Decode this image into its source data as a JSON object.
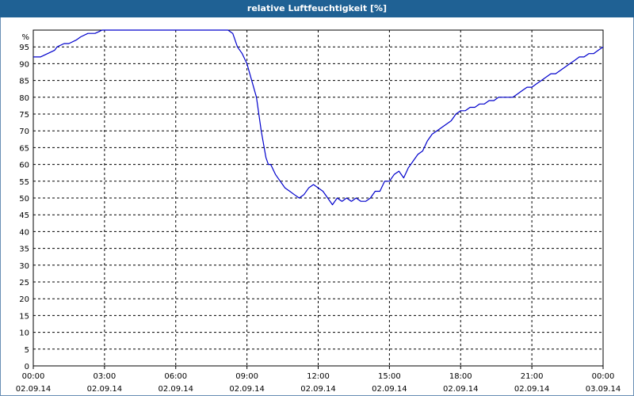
{
  "header": {
    "title": "relative Luftfeuchtigkeit [%]"
  },
  "chart_data": {
    "type": "line",
    "title": "relative Luftfeuchtigkeit [%]",
    "ylabel": "%",
    "xlabel": "",
    "ylim": [
      0,
      100
    ],
    "yticks": [
      0,
      5,
      10,
      15,
      20,
      25,
      30,
      35,
      40,
      45,
      50,
      55,
      60,
      65,
      70,
      75,
      80,
      85,
      90,
      95
    ],
    "xlim_hours": [
      0,
      24
    ],
    "xticks": [
      {
        "hours": 0,
        "time": "00:00",
        "date": "02.09.14"
      },
      {
        "hours": 3,
        "time": "03:00",
        "date": "02.09.14"
      },
      {
        "hours": 6,
        "time": "06:00",
        "date": "02.09.14"
      },
      {
        "hours": 9,
        "time": "09:00",
        "date": "02.09.14"
      },
      {
        "hours": 12,
        "time": "12:00",
        "date": "02.09.14"
      },
      {
        "hours": 15,
        "time": "15:00",
        "date": "02.09.14"
      },
      {
        "hours": 18,
        "time": "18:00",
        "date": "02.09.14"
      },
      {
        "hours": 21,
        "time": "21:00",
        "date": "02.09.14"
      },
      {
        "hours": 24,
        "time": "00:00",
        "date": "03.09.14"
      }
    ],
    "grid": true,
    "line_color": "#0000cc",
    "series": [
      {
        "x": [
          0,
          0.3,
          0.6,
          0.9,
          1.0,
          1.3,
          1.5,
          1.8,
          2.0,
          2.3,
          2.6,
          2.9,
          3.3,
          4.0,
          4.8,
          5.5,
          6.5,
          7.5,
          8.2,
          8.4,
          8.6,
          8.8,
          9.0,
          9.2,
          9.4,
          9.6,
          9.7,
          9.8,
          9.9,
          10.0,
          10.2,
          10.4,
          10.5,
          10.6,
          10.8,
          11.0,
          11.2,
          11.4,
          11.6,
          11.8,
          12.0,
          12.2,
          12.4,
          12.6,
          12.8,
          13.0,
          13.2,
          13.4,
          13.6,
          13.8,
          14.0,
          14.2,
          14.4,
          14.6,
          14.8,
          15.0,
          15.2,
          15.4,
          15.6,
          15.8,
          16.0,
          16.2,
          16.4,
          16.6,
          16.8,
          17.0,
          17.2,
          17.4,
          17.6,
          17.8,
          18.0,
          18.2,
          18.4,
          18.6,
          18.8,
          19.0,
          19.2,
          19.4,
          19.6,
          19.8,
          20.0,
          20.2,
          20.4,
          20.6,
          20.8,
          21.0,
          21.2,
          21.4,
          21.6,
          21.8,
          22.0,
          22.2,
          22.4,
          22.6,
          22.8,
          23.0,
          23.2,
          23.4,
          23.6,
          23.8,
          24.0
        ],
        "y": [
          92,
          92,
          93,
          94,
          95,
          96,
          96,
          97,
          98,
          99,
          99,
          100,
          100,
          100,
          100,
          100,
          100,
          100,
          100,
          99,
          95,
          93,
          90,
          85,
          80,
          70,
          66,
          62,
          60,
          60,
          57,
          55,
          54,
          53,
          52,
          51,
          50,
          51,
          53,
          54,
          53,
          52,
          50,
          48,
          50,
          49,
          50,
          49,
          50,
          49,
          49,
          50,
          52,
          52,
          55,
          55,
          57,
          58,
          56,
          59,
          61,
          63,
          64,
          67,
          69,
          70,
          71,
          72,
          73,
          75,
          76,
          76,
          77,
          77,
          78,
          78,
          79,
          79,
          80,
          80,
          80,
          80,
          81,
          82,
          83,
          83,
          84,
          85,
          86,
          87,
          87,
          88,
          89,
          90,
          91,
          92,
          92,
          93,
          93,
          94,
          95
        ]
      }
    ]
  }
}
